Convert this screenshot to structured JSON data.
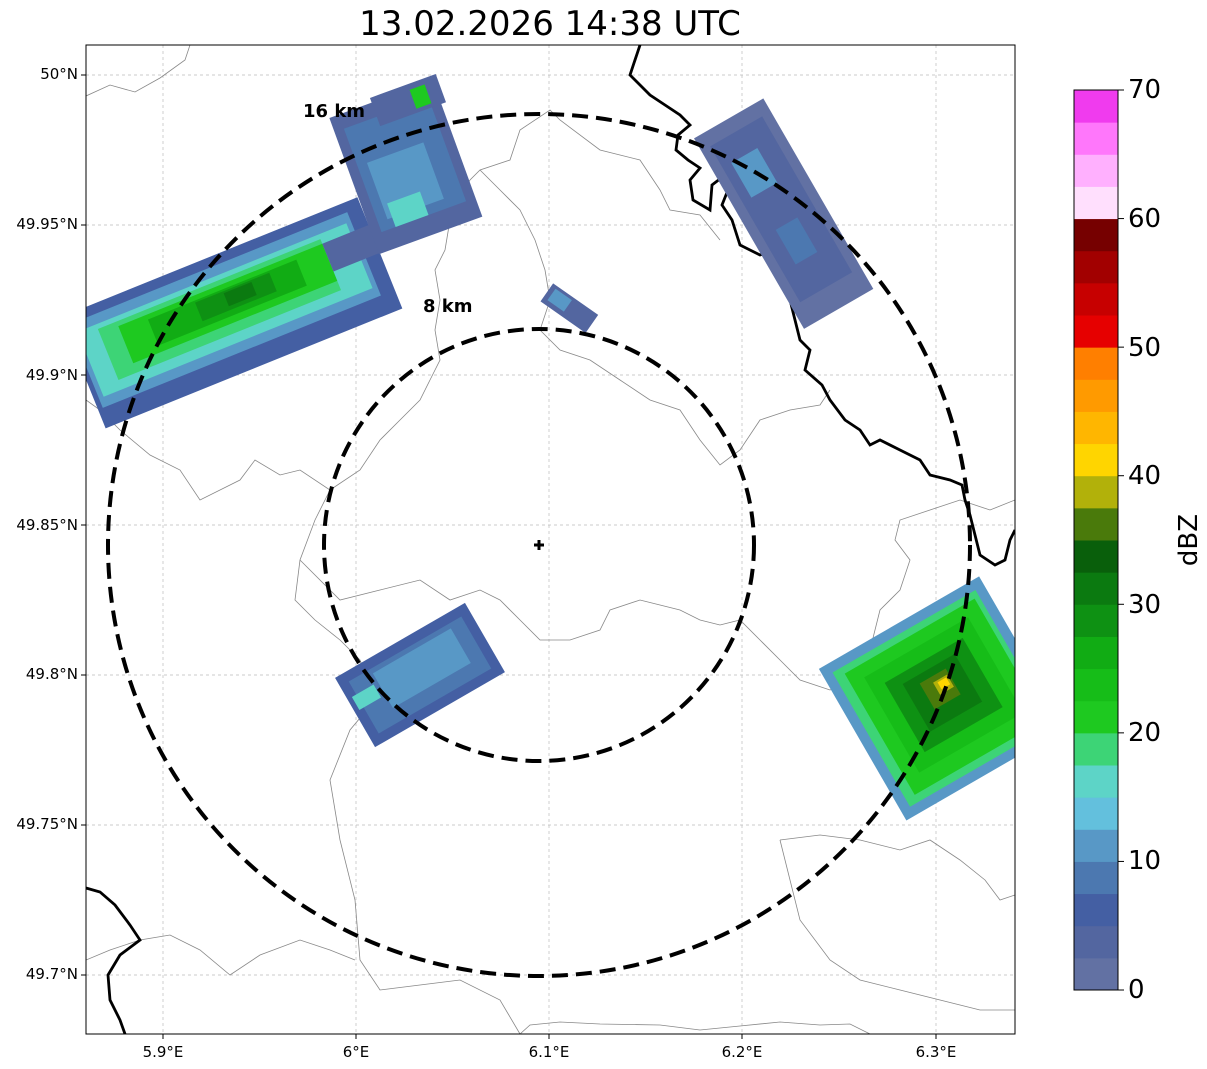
{
  "title": "13.02.2026 14:38 UTC",
  "map": {
    "lon_range": [
      5.86,
      6.34
    ],
    "lat_range": [
      49.68,
      50.01
    ],
    "lat_ticks": [
      "50°N",
      "49.95°N",
      "49.9°N",
      "49.85°N",
      "49.8°N",
      "49.75°N",
      "49.7°N"
    ],
    "lon_ticks": [
      "5.9°E",
      "6°E",
      "6.1°E",
      "6.2°E",
      "6.3°E"
    ],
    "radar_site": {
      "lon": 6.095,
      "lat": 49.843
    },
    "rings": [
      {
        "label": "8 km",
        "radius_km": 8
      },
      {
        "label": "16 km",
        "radius_km": 16
      }
    ],
    "echo_cells": [
      {
        "name": "northwest-band",
        "max_dbz": 32
      },
      {
        "name": "north-cell",
        "max_dbz": 22
      },
      {
        "name": "northeast-cell",
        "max_dbz": 10
      },
      {
        "name": "small-central-cell",
        "max_dbz": 10
      },
      {
        "name": "southwest-cell",
        "max_dbz": 12
      },
      {
        "name": "east-cell",
        "max_dbz": 38
      }
    ]
  },
  "colorbar": {
    "label": "dBZ",
    "ticks": [
      "70",
      "60",
      "50",
      "40",
      "30",
      "20",
      "10",
      "0"
    ],
    "colors": [
      "#6271a3",
      "#5366a0",
      "#445fa3",
      "#4c78b0",
      "#5898c6",
      "#63c0dd",
      "#5dd4c7",
      "#3dd476",
      "#1ec920",
      "#16bd18",
      "#11ac14",
      "#0e9113",
      "#0b7a10",
      "#095f0b",
      "#4a7a0b",
      "#b2b10a",
      "#ffd500",
      "#ffb600",
      "#ff9a00",
      "#ff7f00",
      "#e60000",
      "#c70000",
      "#a20000",
      "#760000",
      "#ffdffd",
      "#ffb0fe",
      "#ff77fb",
      "#f03bee"
    ]
  }
}
